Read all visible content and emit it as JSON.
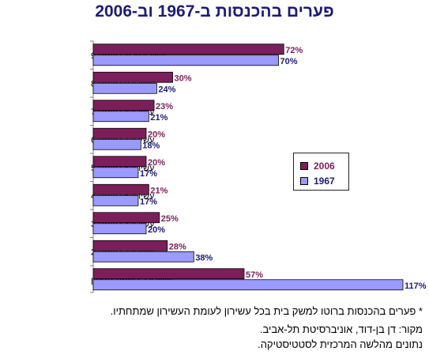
{
  "title": "פערים בהכנסות ב-1967 וב-2006",
  "footnotes": {
    "note": "* פערים בהכנסות ברוטו למשק בית בכל עשירון לעומת העשירון שמתחתיו.",
    "source_line1": "מקור: דן בן-דוד, אוניברסיטת תל-אביב.",
    "source_line2": "נתונים מהלשה המרכזית לסטטיסטיקה."
  },
  "colors": {
    "series_2006": "#7b1f5a",
    "series_1967": "#9b9bff",
    "label_2006": "#7b1f5a",
    "label_1967": "#1b1a7a",
    "title": "#1b1a7a"
  },
  "chart_data": {
    "type": "bar",
    "orientation": "horizontal",
    "categories": [
      "עשירון עליון לעומת 9",
      "עשירון 9 לעומת 8",
      "עשירון 8 לעומת 7",
      "עשירון 7 לעומת 6",
      "עשירון 6 לעומת 5",
      "עשירון 5 לעומת 4",
      "עשירון 4 לעומת 3",
      "עשירון 3 לעומת 2",
      "עשירון 2 לעומת תחתון"
    ],
    "series": [
      {
        "name": "2006",
        "values": [
          72,
          30,
          23,
          20,
          20,
          21,
          25,
          28,
          57
        ],
        "labels": [
          "72%",
          "30%",
          "23%",
          "20%",
          "20%",
          "21%",
          "25%",
          "28%",
          "57%"
        ]
      },
      {
        "name": "1967",
        "values": [
          70,
          24,
          21,
          18,
          17,
          17,
          20,
          38,
          117
        ],
        "labels": [
          "70%",
          "24%",
          "21%",
          "18%",
          "17%",
          "17%",
          "20%",
          "38%",
          "117%"
        ]
      }
    ],
    "legend_position": "right",
    "xlim": [
      0,
      117
    ]
  }
}
